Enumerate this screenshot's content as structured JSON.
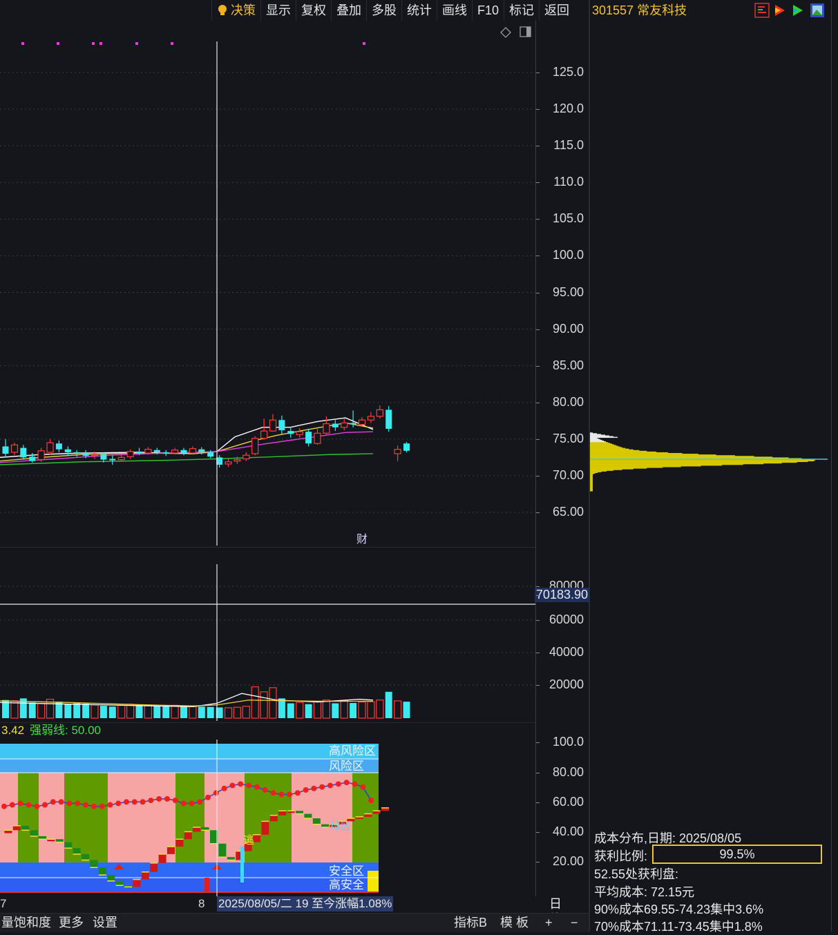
{
  "toolbar": {
    "items": [
      "决策",
      "显示",
      "复权",
      "叠加",
      "多股",
      "统计",
      "画线",
      "F10",
      "标记",
      "返回"
    ],
    "stock_code_name": "301557 常友科技"
  },
  "main_chart": {
    "price_axis": [
      "125.0",
      "120.0",
      "115.0",
      "110.0",
      "105.0",
      "100.0",
      "95.00",
      "90.00",
      "85.00",
      "80.00",
      "75.00",
      "70.00",
      "65.00"
    ],
    "finance_marker": "财"
  },
  "volume_chart": {
    "axis": [
      "80000",
      "60000",
      "40000",
      "20000"
    ],
    "crosshair_value": "70183.90"
  },
  "indicator_chart": {
    "header_value": "3.42",
    "strength_line_label": "强弱线: 50.00",
    "axis": [
      "100.0",
      "80.00",
      "60.00",
      "40.00",
      "20.00"
    ],
    "zones": {
      "high_risk": "高风险区",
      "risk": "风险区",
      "safe": "安全区",
      "high_safe": "高安全"
    },
    "escape_marker": "逃",
    "green_zone_label": "绿区"
  },
  "date_bar": {
    "left_tick": "7",
    "mid_tick": "8",
    "crosshair_info": "2025/08/05/二 19 至今涨幅1.08%",
    "period": "日线"
  },
  "bottom_bar": {
    "left_label": "量饱和度",
    "more": "更多",
    "settings": "设置",
    "indicator_b": "指标B",
    "template": "模 板",
    "plus": "+",
    "minus": "−"
  },
  "cost_distribution": {
    "title": "成本分布,日期:  2025/08/05",
    "profit_ratio_label": "获利比例:",
    "profit_ratio_value": "99.5%",
    "profit_at": "52.55处获利盘:",
    "avg_cost": "平均成本:  72.15元",
    "cost_90": "90%成本69.55-74.23集中3.6%",
    "cost_70": "70%成本71.11-73.45集中1.8%"
  },
  "colors": {
    "up": "#ff3b3b",
    "down": "#3ee8ef",
    "ma5": "#ffffff",
    "ma10": "#f0d040",
    "ma20": "#e040e0",
    "ma60": "#30c030",
    "chip_yellow": "#d8c800",
    "risk_blue": "#3fc6f5",
    "pink": "#f7a4a4",
    "olive_green": "#5f9a00",
    "safe_blue": "#2e5ff2"
  }
}
